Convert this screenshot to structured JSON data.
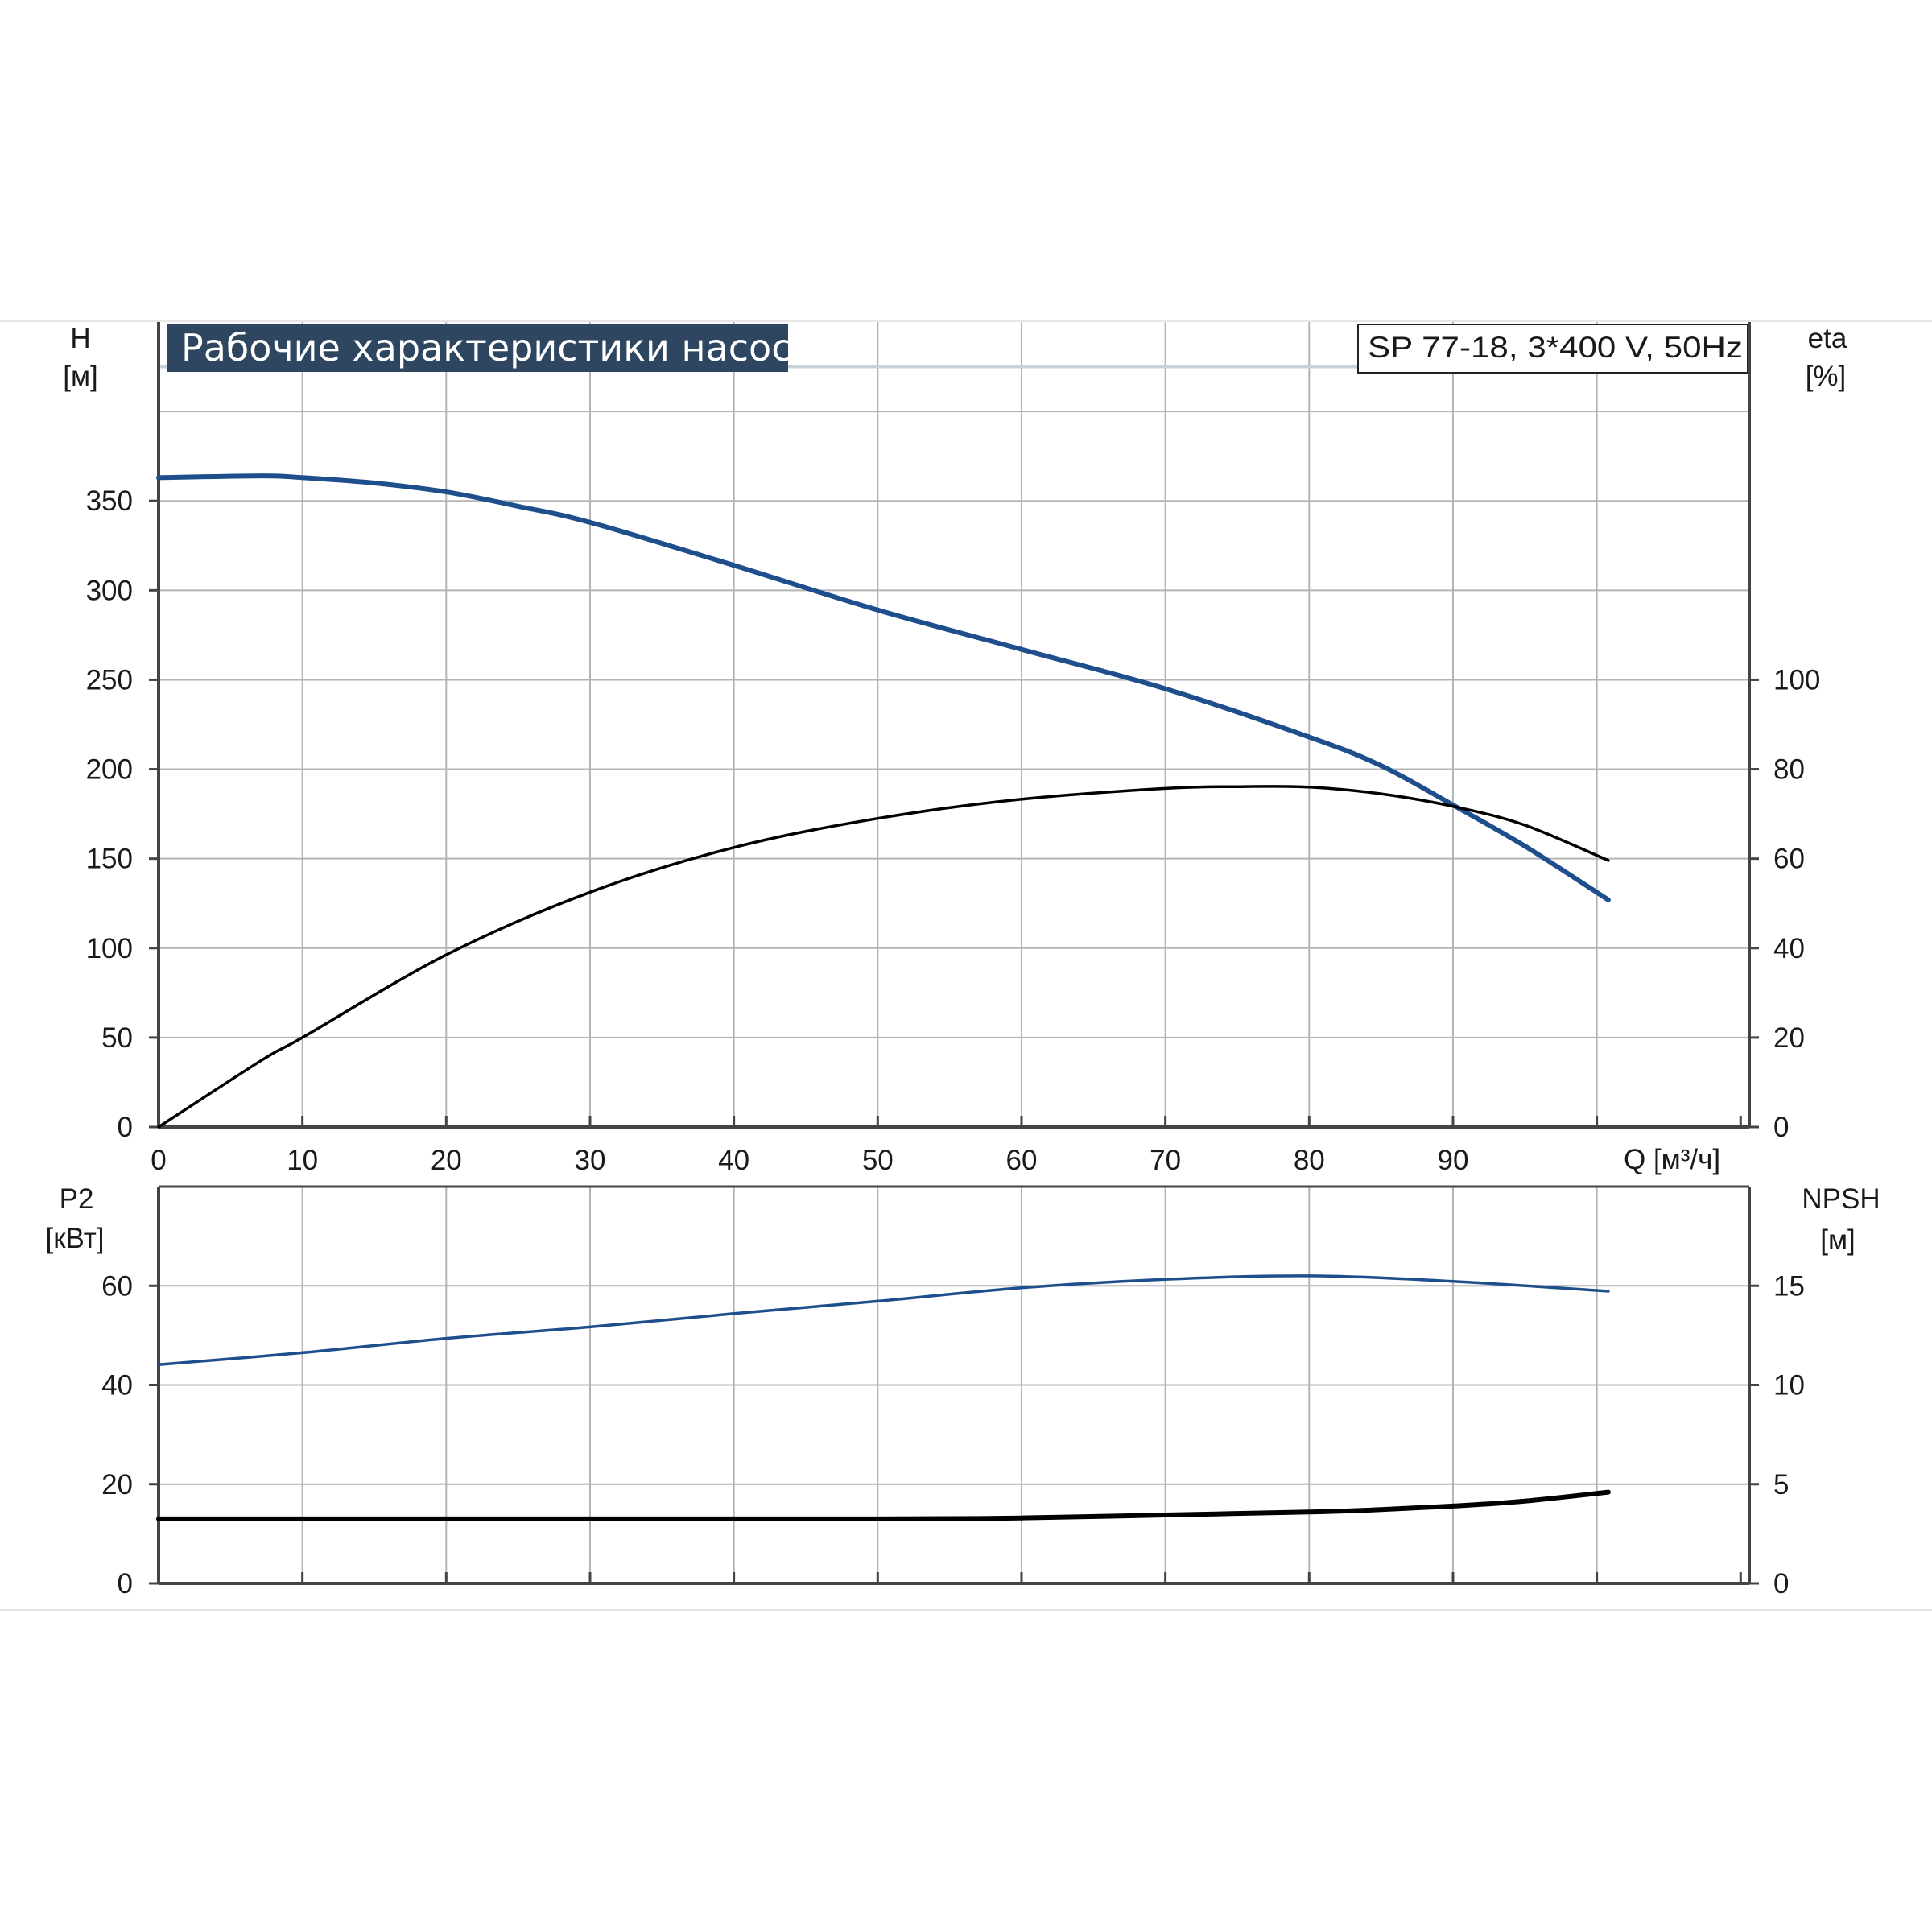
{
  "title": "Рабочие характеристики насоса",
  "model": "SP 77-18, 3*400 V, 50Hz",
  "colors": {
    "blue": "#1f4e8c",
    "black": "#000000",
    "grid": "#b4b4b4",
    "title_bg": "#2f4660",
    "frame": "#444444"
  },
  "chart_data": [
    {
      "type": "line",
      "name": "top",
      "xlabel": "Q [м³/ч]",
      "ylabel_left": [
        "H",
        "[м]"
      ],
      "ylabel_right": [
        "eta",
        "[%]"
      ],
      "x_ticks": [
        "0",
        "10",
        "20",
        "30",
        "40",
        "50",
        "60",
        "70",
        "80",
        "90"
      ],
      "y_left_ticks": [
        "0",
        "50",
        "100",
        "150",
        "200",
        "250",
        "300",
        "350"
      ],
      "y_right_ticks": [
        "0",
        "20",
        "40",
        "60",
        "80",
        "100"
      ],
      "xlim": [
        0,
        110.6
      ],
      "ylim_left": [
        0,
        450
      ],
      "ylim_right": [
        0,
        180
      ],
      "grid": true,
      "series": [
        {
          "color": "blue",
          "axis": "left",
          "x": [
            0,
            7.2,
            10,
            15,
            20,
            25,
            30,
            40,
            50,
            60,
            70,
            80,
            85,
            90,
            95,
            100.8
          ],
          "y": [
            363,
            364,
            363,
            360,
            355,
            347,
            338,
            314,
            289,
            267,
            245,
            218,
            202,
            180,
            157,
            127
          ]
        },
        {
          "color": "black",
          "axis": "right",
          "x": [
            0,
            7.2,
            10,
            20,
            30,
            40,
            50,
            60,
            70,
            75,
            80,
            85,
            90,
            95,
            100.8
          ],
          "y": [
            0,
            15,
            20,
            38.5,
            52.5,
            62.5,
            69,
            73.3,
            75.7,
            76.1,
            76,
            74.5,
            71.7,
            67.5,
            59.6
          ]
        }
      ]
    },
    {
      "type": "line",
      "name": "bottom",
      "ylabel_left": [
        "P2",
        "[кВт]"
      ],
      "ylabel_right": [
        "NPSH",
        "[м]"
      ],
      "y_left_ticks": [
        "0",
        "20",
        "40",
        "60"
      ],
      "y_right_ticks": [
        "0",
        "5",
        "10",
        "15"
      ],
      "xlim": [
        0,
        110.6
      ],
      "ylim_left": [
        0,
        80
      ],
      "ylim_right": [
        0,
        20
      ],
      "grid": true,
      "series": [
        {
          "color": "blue",
          "axis": "left",
          "x": [
            0,
            10,
            20,
            30,
            40,
            50,
            60,
            70,
            80,
            90,
            100.8
          ],
          "y": [
            44.1,
            46.5,
            49.4,
            51.7,
            54.4,
            56.9,
            59.6,
            61.3,
            62,
            60.9,
            58.9
          ]
        },
        {
          "color": "black",
          "axis": "right",
          "x": [
            0,
            7.2,
            30,
            50,
            60,
            70,
            80,
            85,
            90,
            95,
            100.8
          ],
          "y": [
            3.25,
            3.25,
            3.25,
            3.25,
            3.3,
            3.45,
            3.6,
            3.72,
            3.9,
            4.15,
            4.6
          ]
        }
      ]
    }
  ]
}
